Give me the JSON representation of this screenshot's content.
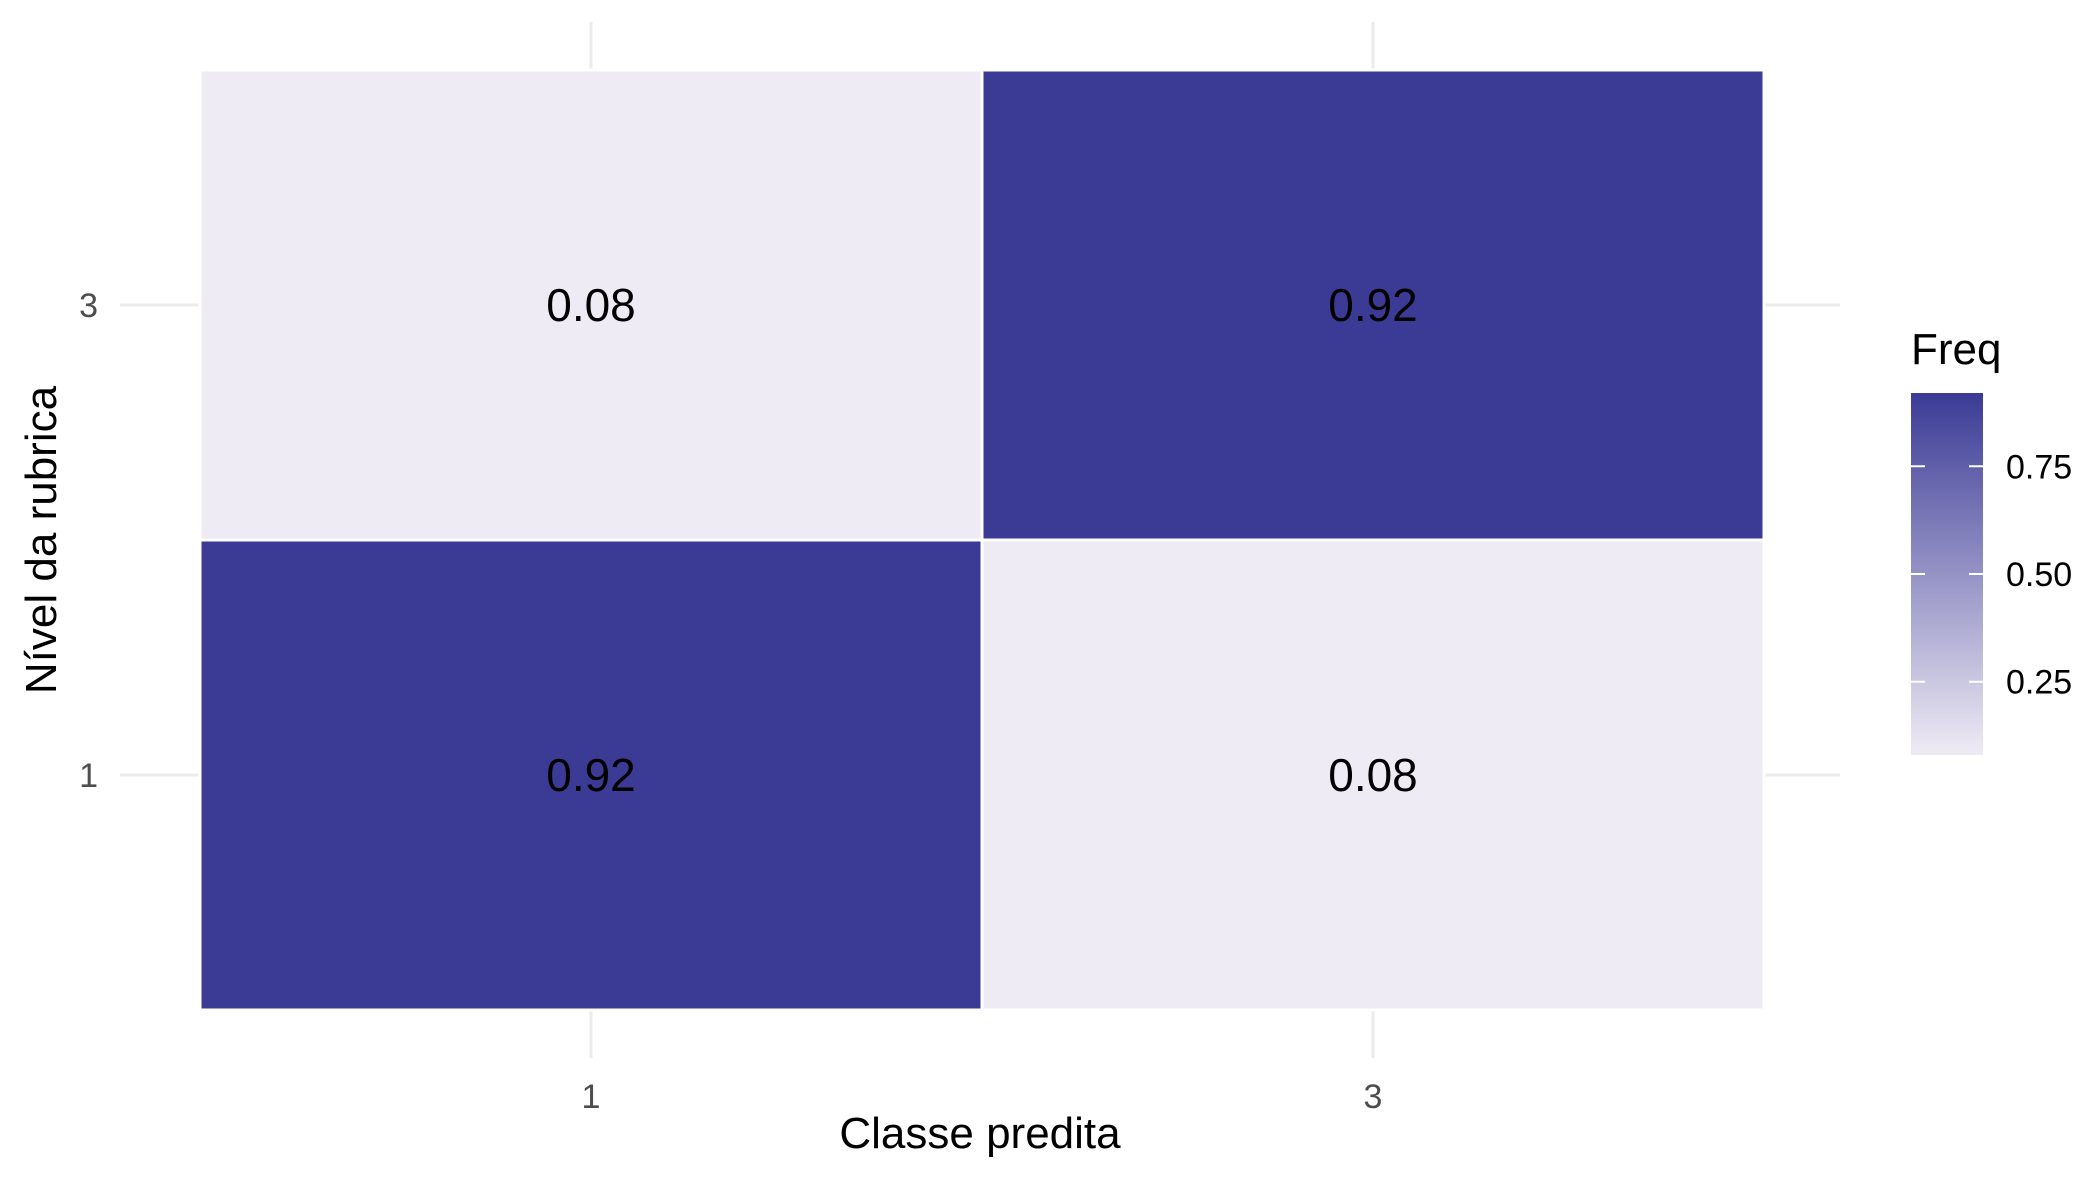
{
  "chart_data": {
    "type": "heatmap",
    "xlabel": "Classe predita",
    "ylabel": "Nível da rubrica",
    "x_categories": [
      "1",
      "3"
    ],
    "y_categories": [
      "1",
      "3"
    ],
    "cells": [
      {
        "x": "1",
        "y": "3",
        "value": 0.08,
        "label": "0.08"
      },
      {
        "x": "3",
        "y": "3",
        "value": 0.92,
        "label": "0.92"
      },
      {
        "x": "1",
        "y": "1",
        "value": 0.92,
        "label": "0.92"
      },
      {
        "x": "3",
        "y": "1",
        "value": 0.08,
        "label": "0.08"
      }
    ],
    "legend": {
      "title": "Freq",
      "range": [
        0.08,
        0.92
      ],
      "ticks": [
        {
          "value": 0.25,
          "label": "0.25"
        },
        {
          "value": 0.5,
          "label": "0.50"
        },
        {
          "value": 0.75,
          "label": "0.75"
        }
      ],
      "placement": "right"
    },
    "colors": {
      "low": "#efebf5",
      "high": "#3b3b96"
    },
    "grid": true
  }
}
